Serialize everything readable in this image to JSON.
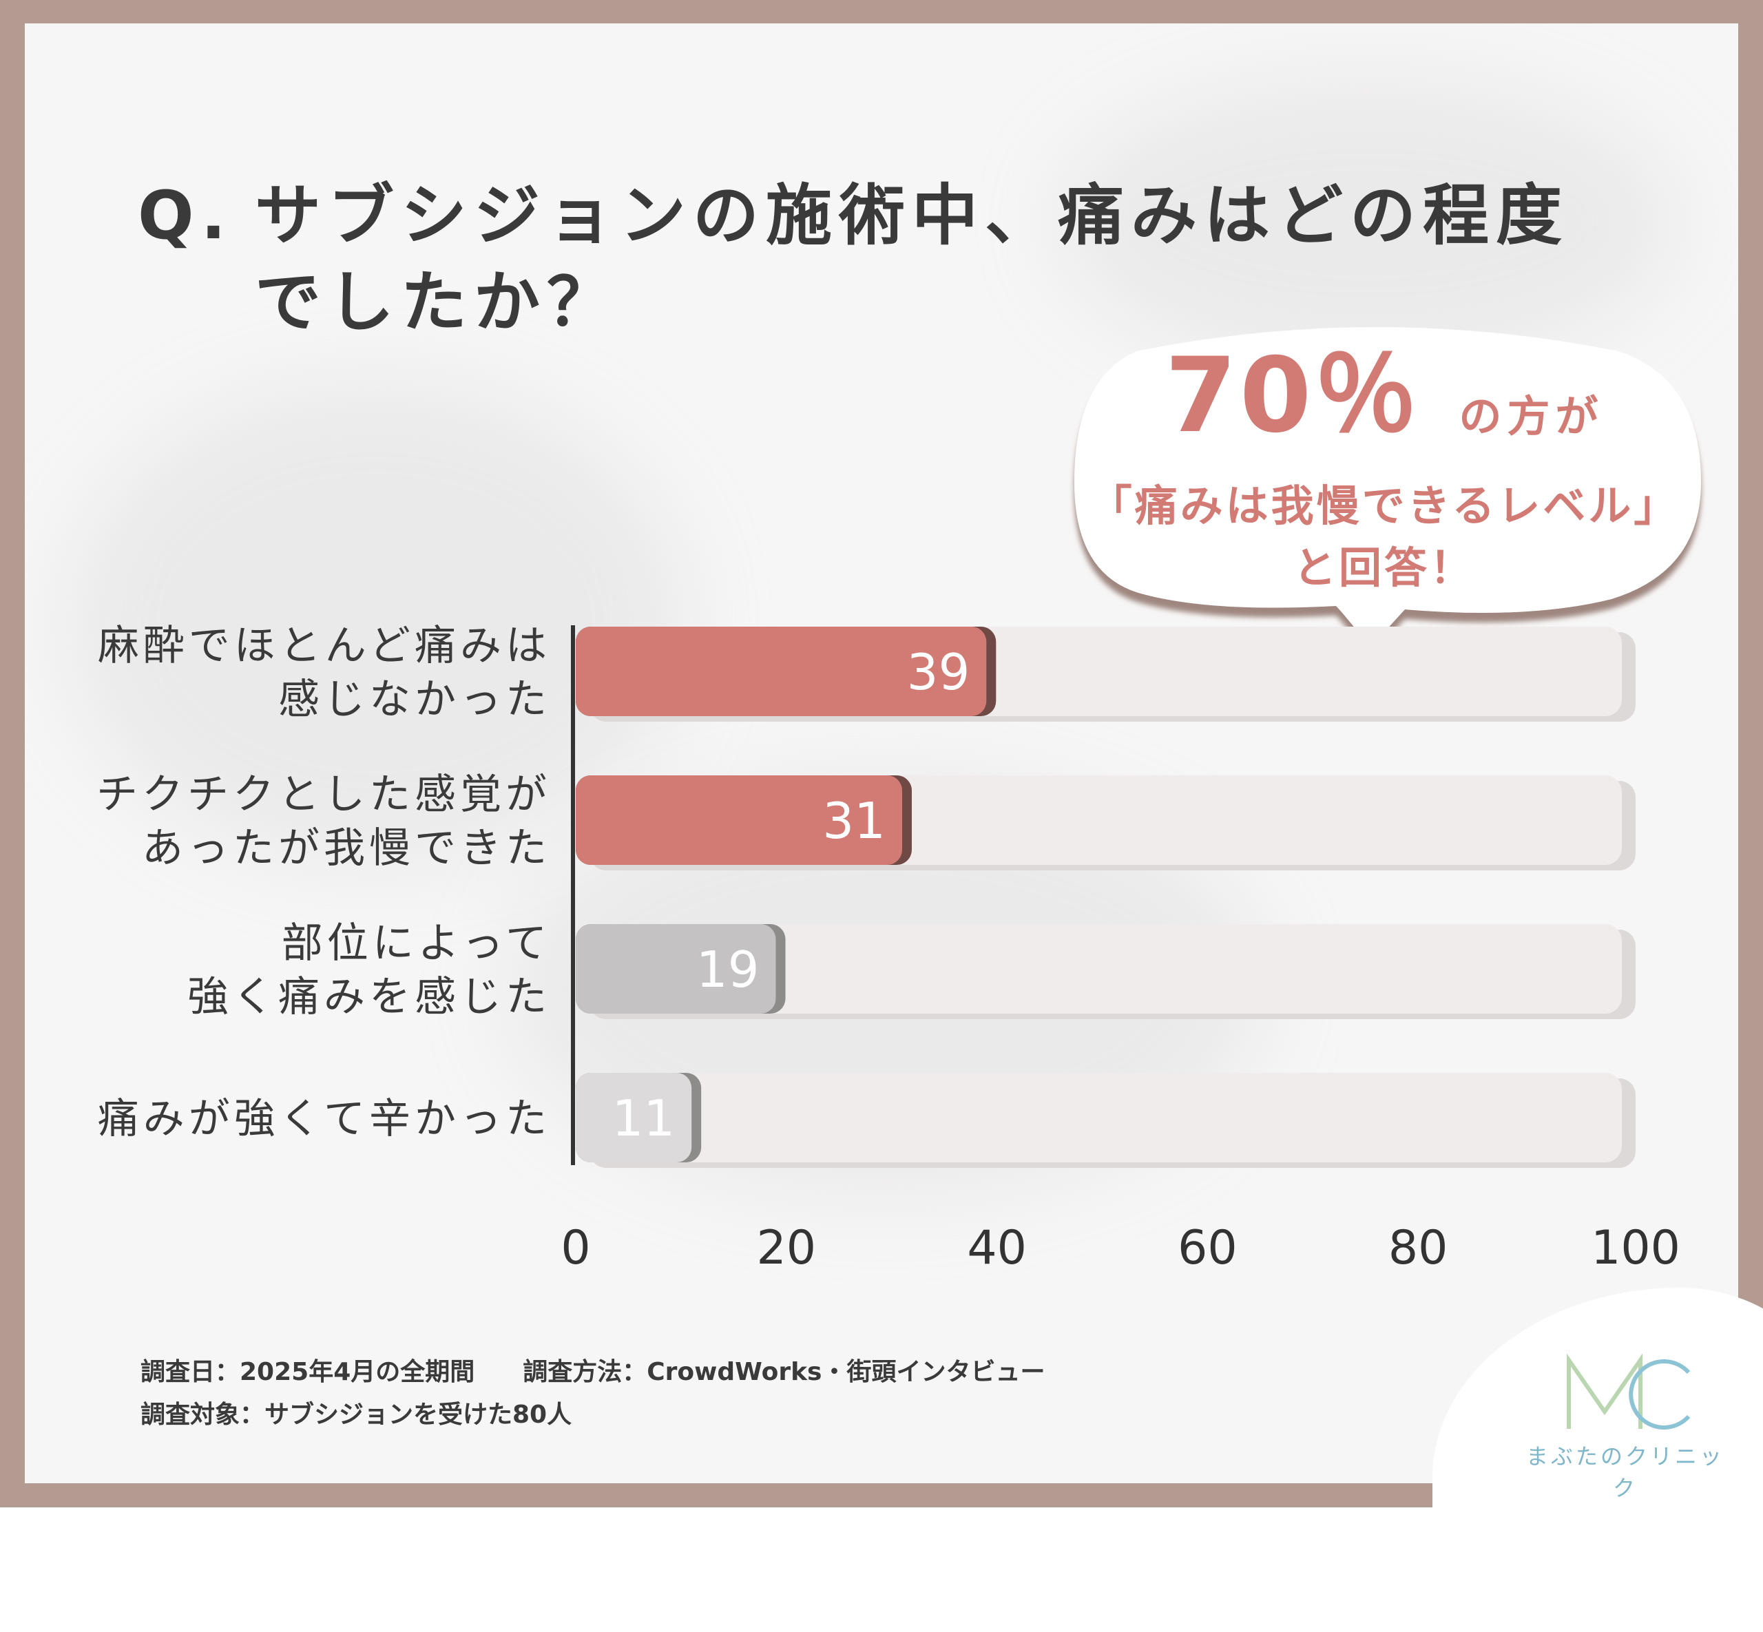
{
  "title": {
    "q": "Q.",
    "line1": "サブシジョンの施術中、痛みはどの程度",
    "line2": "でしたか？"
  },
  "callout": {
    "percent": "70％",
    "suffix": "の方が",
    "line2": "「痛みは我慢できるレベル」",
    "line3": "と回答！"
  },
  "chart_data": {
    "type": "bar",
    "orientation": "horizontal",
    "categories": [
      [
        "麻酔でほとんど痛みは",
        "感じなかった"
      ],
      [
        "チクチクとした感覚が",
        "あったが我慢できた"
      ],
      [
        "部位によって",
        "強く痛みを感じた"
      ],
      [
        "痛みが強くて辛かった"
      ]
    ],
    "values": [
      39,
      31,
      19,
      11
    ],
    "data_labels": [
      "39",
      "31",
      "19",
      "11"
    ],
    "xlim": [
      0,
      100
    ],
    "x_ticks": [
      "0",
      "20",
      "40",
      "60",
      "80",
      "100"
    ],
    "bar_colors": [
      "#d27a74",
      "#d27a74",
      "#c4c2c2",
      "#dcdada"
    ],
    "track_color": "#efeceb"
  },
  "footer": {
    "date": "調査日：2025年4月の全期間",
    "method": "調査方法：CrowdWorks・街頭インタビュー",
    "target": "調査対象：サブシジョンを受けた80人"
  },
  "logo": {
    "mark": "MC",
    "name": "まぶたのクリニック",
    "color": "#7fb6c9"
  }
}
